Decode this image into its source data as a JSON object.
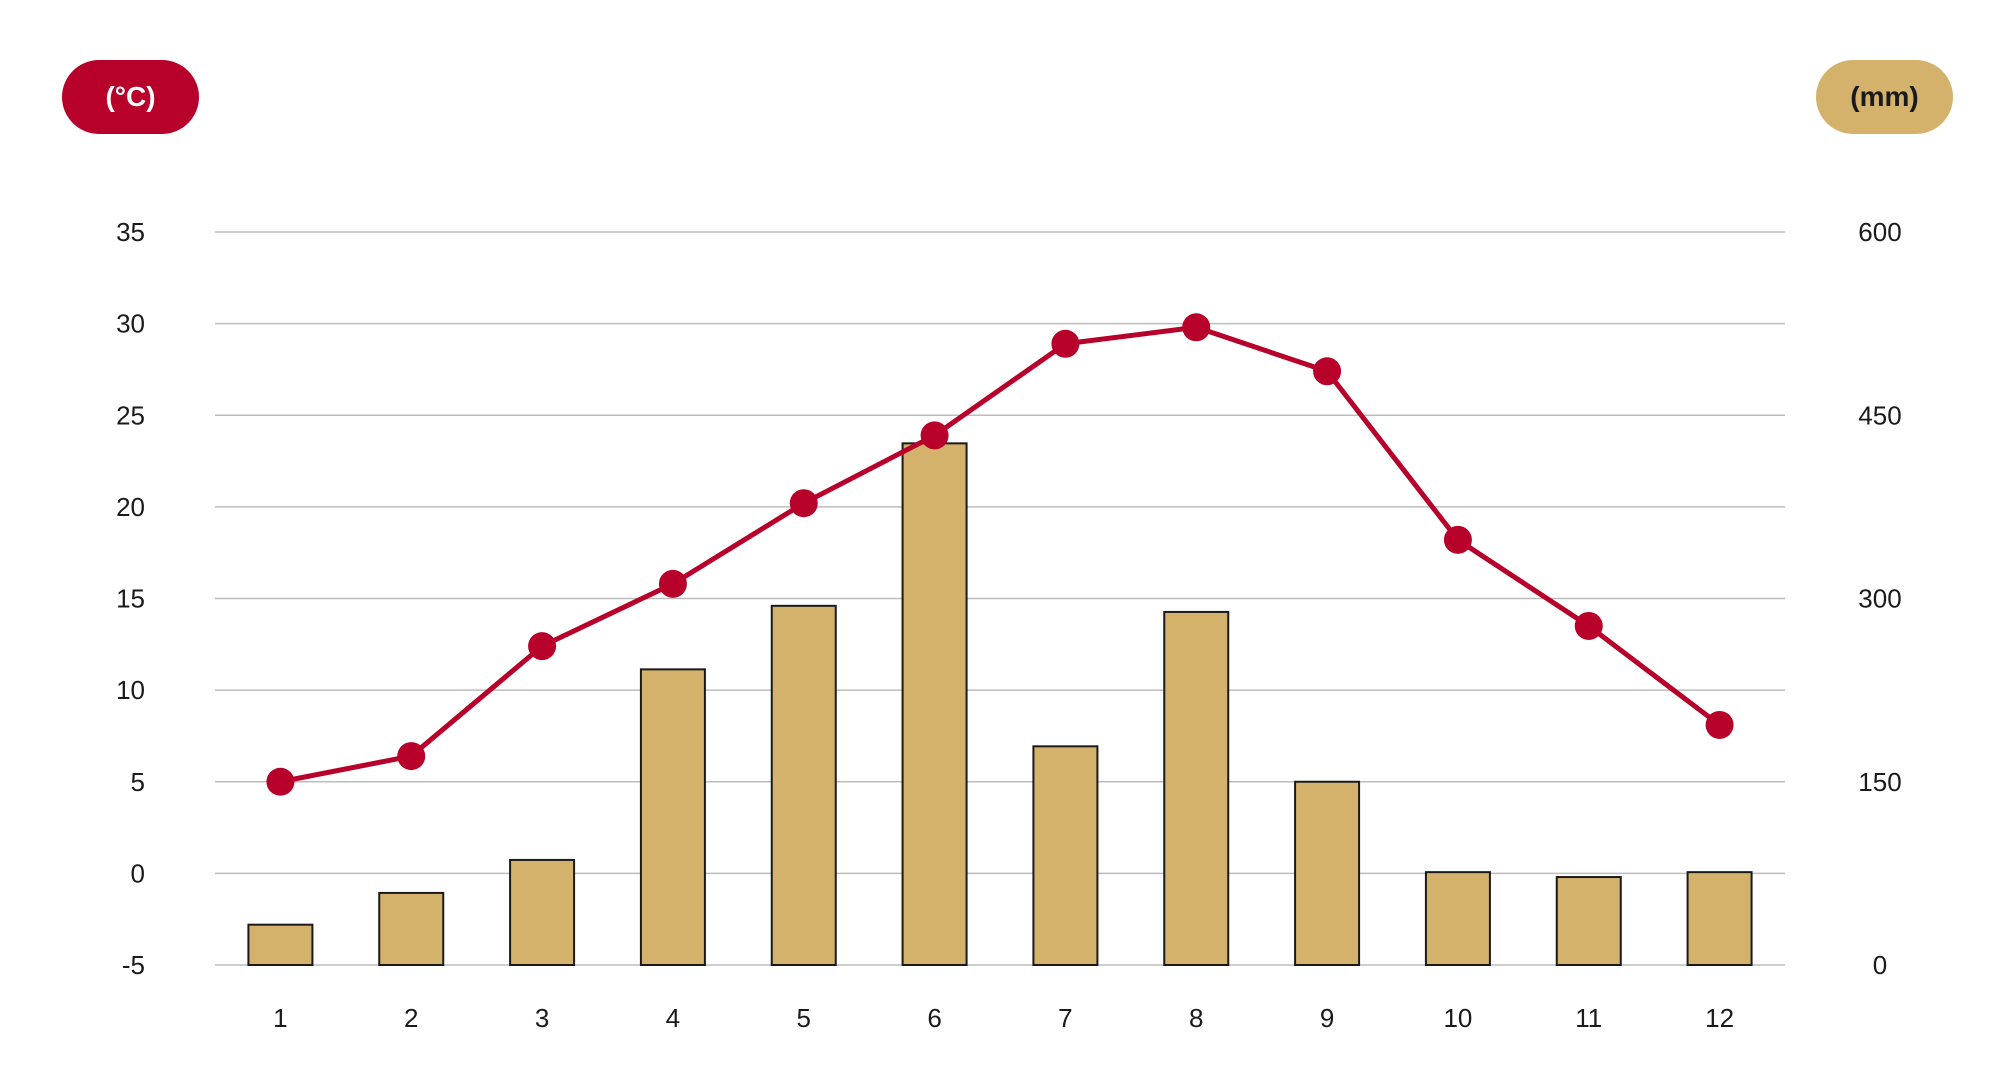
{
  "colors": {
    "temperature": "#b7002a",
    "precipitation": "#d4b26c",
    "bar_outline": "#1a1a1a",
    "grid": "#bdbdbd"
  },
  "badges": {
    "left_unit": "(°C)",
    "right_unit": "(mm)"
  },
  "chart_data": {
    "type": "bar+line",
    "categories": [
      "1",
      "2",
      "3",
      "4",
      "5",
      "6",
      "7",
      "8",
      "9",
      "10",
      "11",
      "12"
    ],
    "left_axis": {
      "unit": "(°C)",
      "ylim": [
        -5,
        35
      ],
      "ticks": [
        -5,
        0,
        5,
        10,
        15,
        20,
        25,
        30,
        35
      ]
    },
    "right_axis": {
      "unit": "(mm)",
      "ylim": [
        0,
        600
      ],
      "ticks": [
        0,
        150,
        300,
        450,
        600
      ]
    },
    "series": [
      {
        "type": "bar",
        "axis": "right",
        "values": [
          33,
          59,
          86,
          242,
          294,
          427,
          179,
          289,
          150,
          76,
          72,
          76
        ]
      },
      {
        "type": "line",
        "axis": "left",
        "values": [
          5.0,
          6.4,
          12.4,
          15.8,
          20.2,
          23.9,
          28.9,
          29.8,
          27.4,
          18.2,
          13.5,
          8.1
        ]
      }
    ],
    "grid": true
  }
}
